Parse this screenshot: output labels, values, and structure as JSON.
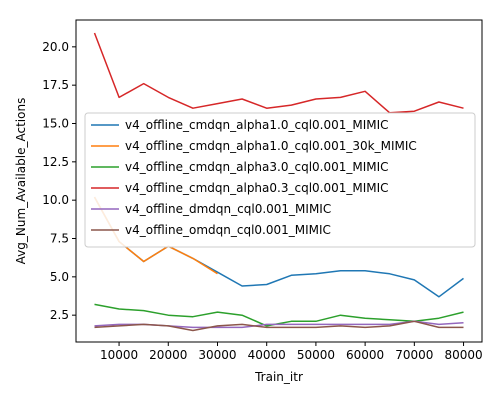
{
  "chart_data": {
    "type": "line",
    "title": "",
    "xlabel": "Train_itr",
    "ylabel": "Avg_Num_Available_Actions",
    "xlim": [
      1250,
      83750
    ],
    "ylim": [
      0.75,
      21.75
    ],
    "xticks": [
      10000,
      20000,
      30000,
      40000,
      50000,
      60000,
      70000,
      80000
    ],
    "yticks": [
      2.5,
      5.0,
      7.5,
      10.0,
      12.5,
      15.0,
      17.5,
      20.0
    ],
    "xtick_labels": [
      "10000",
      "20000",
      "30000",
      "40000",
      "50000",
      "60000",
      "70000",
      "80000"
    ],
    "ytick_labels": [
      "2.5",
      "5.0",
      "7.5",
      "10.0",
      "12.5",
      "15.0",
      "17.5",
      "20.0"
    ],
    "grid": false,
    "legend_position": "center-right",
    "series": [
      {
        "name": "v4_offline_cmdqn_alpha1.0_cql0.001_MIMIC",
        "color": "#1f77b4",
        "x": [
          5000,
          10000,
          15000,
          20000,
          25000,
          30000,
          35000,
          40000,
          45000,
          50000,
          55000,
          60000,
          65000,
          70000,
          75000,
          80000
        ],
        "y": [
          10.2,
          7.3,
          6.0,
          7.0,
          6.2,
          5.3,
          4.4,
          4.5,
          5.1,
          5.2,
          5.4,
          5.4,
          5.2,
          4.8,
          3.7,
          4.9
        ]
      },
      {
        "name": "v4_offline_cmdqn_alpha1.0_cql0.001_30k_MIMIC",
        "color": "#ff7f0e",
        "x": [
          5000,
          10000,
          15000,
          20000,
          25000,
          30000
        ],
        "y": [
          10.2,
          7.3,
          6.0,
          7.0,
          6.2,
          5.2
        ]
      },
      {
        "name": "v4_offline_cmdqn_alpha3.0_cql0.001_MIMIC",
        "color": "#2ca02c",
        "x": [
          5000,
          10000,
          15000,
          20000,
          25000,
          30000,
          35000,
          40000,
          45000,
          50000,
          55000,
          60000,
          65000,
          70000,
          75000,
          80000
        ],
        "y": [
          3.2,
          2.9,
          2.8,
          2.5,
          2.4,
          2.7,
          2.5,
          1.8,
          2.1,
          2.1,
          2.5,
          2.3,
          2.2,
          2.1,
          2.3,
          2.7
        ]
      },
      {
        "name": "v4_offline_cmdqn_alpha0.3_cql0.001_MIMIC",
        "color": "#d62728",
        "x": [
          5000,
          10000,
          15000,
          20000,
          25000,
          30000,
          35000,
          40000,
          45000,
          50000,
          55000,
          60000,
          65000,
          70000,
          75000,
          80000
        ],
        "y": [
          20.9,
          16.7,
          17.6,
          16.7,
          16.0,
          16.3,
          16.6,
          16.0,
          16.2,
          16.6,
          16.7,
          17.1,
          15.7,
          15.8,
          16.4,
          16.0
        ]
      },
      {
        "name": "v4_offline_dmdqn_cql0.001_MIMIC",
        "color": "#9467bd",
        "x": [
          5000,
          10000,
          15000,
          20000,
          25000,
          30000,
          35000,
          40000,
          45000,
          50000,
          55000,
          60000,
          65000,
          70000,
          75000,
          80000
        ],
        "y": [
          1.8,
          1.9,
          1.9,
          1.8,
          1.7,
          1.7,
          1.7,
          1.9,
          1.9,
          1.9,
          1.9,
          1.9,
          1.9,
          2.1,
          1.9,
          2.0
        ]
      },
      {
        "name": "v4_offline_omdqn_cql0.001_MIMIC",
        "color": "#8c564b",
        "x": [
          5000,
          10000,
          15000,
          20000,
          25000,
          30000,
          35000,
          40000,
          45000,
          50000,
          55000,
          60000,
          65000,
          70000,
          75000,
          80000
        ],
        "y": [
          1.7,
          1.8,
          1.9,
          1.8,
          1.5,
          1.8,
          1.9,
          1.7,
          1.7,
          1.7,
          1.8,
          1.7,
          1.8,
          2.1,
          1.7,
          1.7
        ]
      }
    ]
  }
}
